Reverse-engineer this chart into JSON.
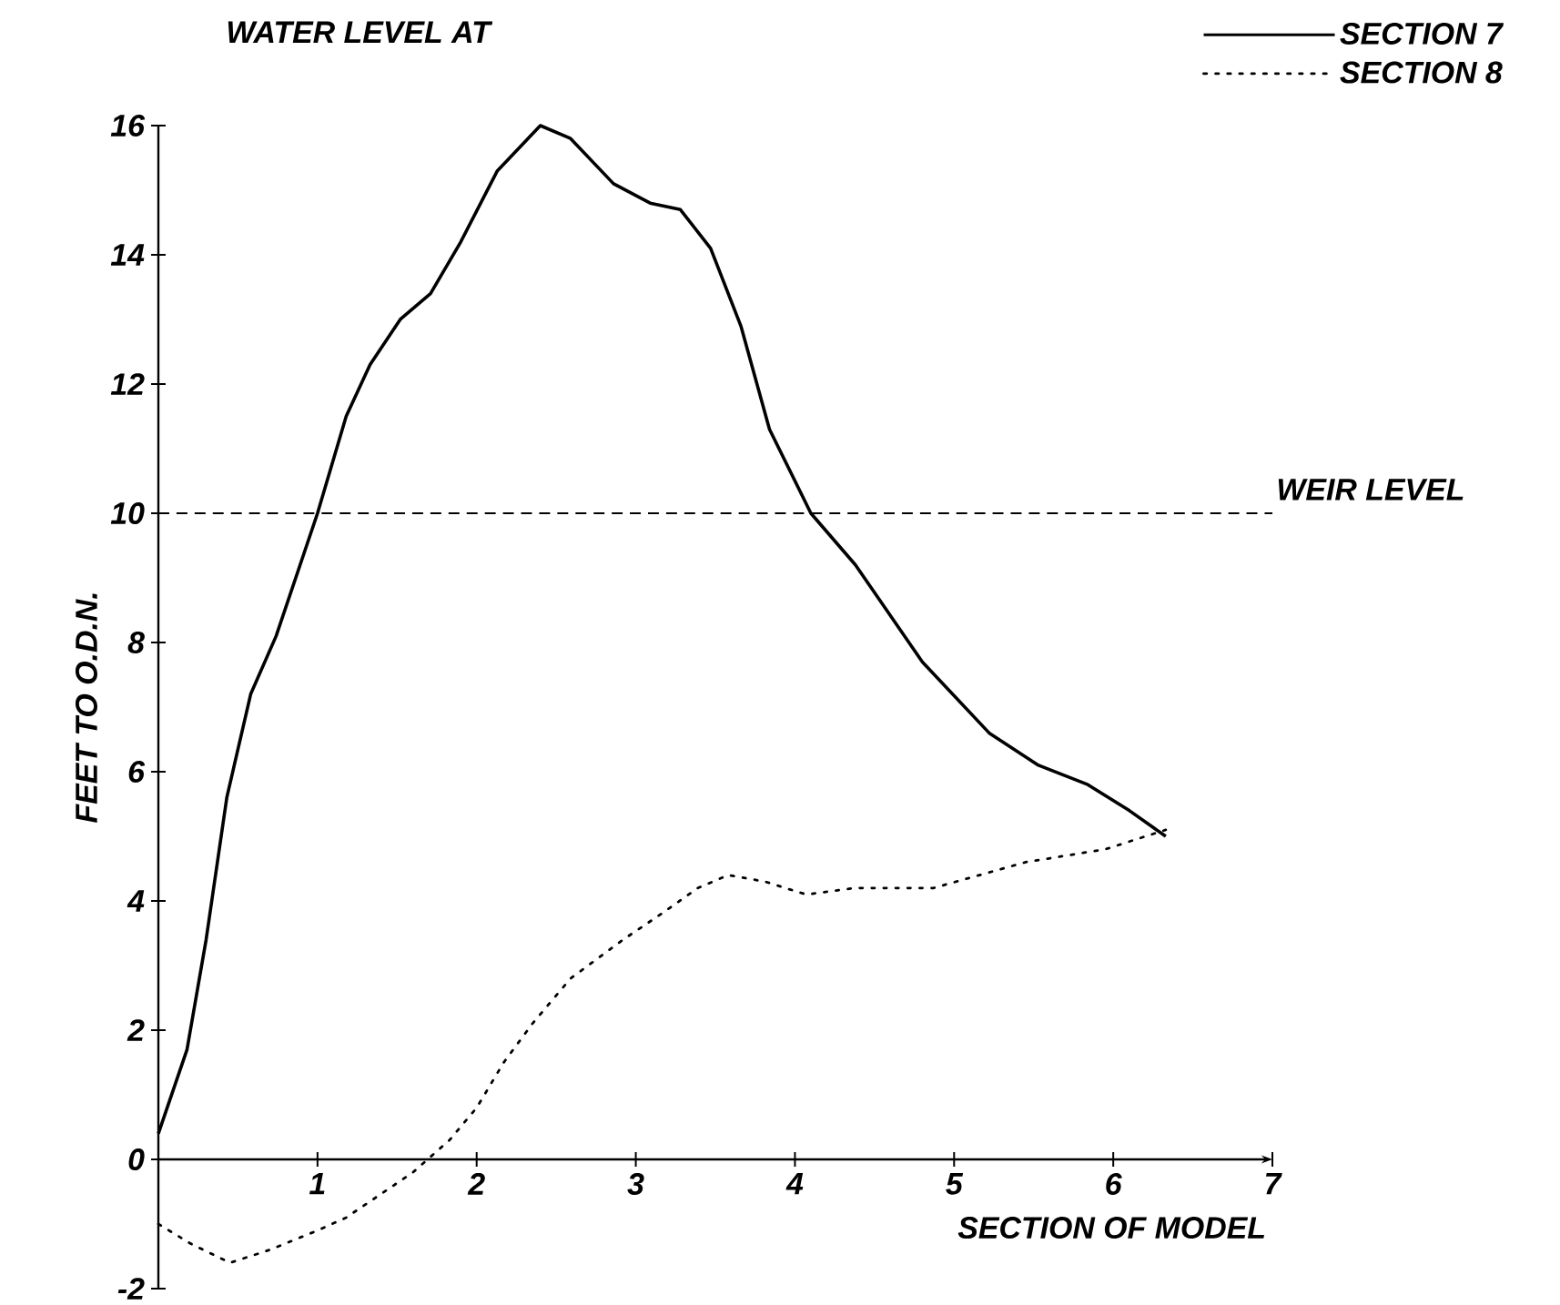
{
  "chart_data": {
    "type": "line",
    "legend_title": "WATER LEVEL AT",
    "xlabel": "SECTION OF MODEL",
    "ylabel": "FEET TO O.D.N.",
    "xlim": [
      0,
      7
    ],
    "ylim": [
      -2,
      16
    ],
    "xticks": [
      1,
      2,
      3,
      4,
      5,
      6,
      7
    ],
    "yticks": [
      -2,
      0,
      2,
      4,
      6,
      8,
      10,
      12,
      14,
      16
    ],
    "legend": "top right",
    "grid": false,
    "ref_lines": [
      {
        "axis": "y",
        "value": 10,
        "label": "WEIR LEVEL",
        "line_style": "dashed"
      }
    ],
    "series": [
      {
        "name": "SECTION 7",
        "color": "#000000",
        "line_style": "solid",
        "x": [
          0,
          0.18,
          0.3,
          0.43,
          0.58,
          0.74,
          1.0,
          1.18,
          1.33,
          1.52,
          1.71,
          1.9,
          2.13,
          2.4,
          2.59,
          2.86,
          3.09,
          3.28,
          3.47,
          3.66,
          3.84,
          4.1,
          4.38,
          4.8,
          5.22,
          5.53,
          5.84,
          6.1,
          6.33
        ],
        "values": [
          0.4,
          1.7,
          3.4,
          5.6,
          7.2,
          8.1,
          10.0,
          11.5,
          12.3,
          13.0,
          13.4,
          14.2,
          15.3,
          16.0,
          15.8,
          15.1,
          14.8,
          14.7,
          14.1,
          12.9,
          11.3,
          10.0,
          9.2,
          7.7,
          6.6,
          6.1,
          5.8,
          5.4,
          5.0
        ]
      },
      {
        "name": "SECTION 8",
        "color": "#000000",
        "line_style": "dotted",
        "x": [
          0,
          0.2,
          0.45,
          0.7,
          1.0,
          1.18,
          1.6,
          1.83,
          2.0,
          2.17,
          2.35,
          2.59,
          2.92,
          3.16,
          3.39,
          3.58,
          3.81,
          4.07,
          4.38,
          4.87,
          5.45,
          5.95,
          6.33
        ],
        "values": [
          -1.0,
          -1.3,
          -1.6,
          -1.4,
          -1.1,
          -0.9,
          -0.2,
          0.3,
          0.8,
          1.5,
          2.1,
          2.8,
          3.4,
          3.8,
          4.2,
          4.4,
          4.3,
          4.1,
          4.2,
          4.2,
          4.6,
          4.8,
          5.1
        ]
      }
    ]
  }
}
